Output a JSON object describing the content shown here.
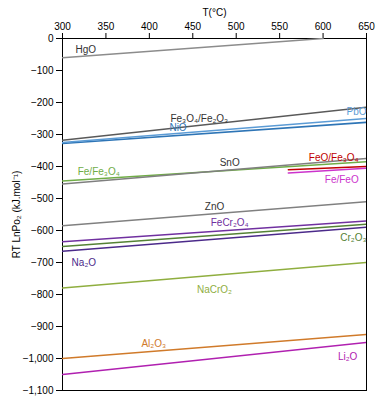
{
  "chart_data": {
    "type": "line",
    "x_label": "T(°C)",
    "y_label": "RT LnPo₂ (kJ.mol⁻¹)",
    "xlim": [
      300,
      650
    ],
    "xticks": [
      300,
      350,
      400,
      450,
      500,
      550,
      600,
      650
    ],
    "ylim": [
      -1100,
      0
    ],
    "yticks": [
      -1100,
      -1000,
      -900,
      -800,
      -700,
      -600,
      -500,
      -400,
      -300,
      -200,
      -100,
      0
    ],
    "grid": false,
    "series": [
      {
        "name": "HgO",
        "color": "#8c8c8c",
        "x": [
          300,
          600
        ],
        "values": [
          -60,
          0
        ]
      },
      {
        "name": "Fe₃O₄/Fe₂O₃",
        "color": "#595959",
        "x": [
          300,
          650
        ],
        "values": [
          -318,
          -215
        ]
      },
      {
        "name": "NiO",
        "color": "#2e75b6",
        "x": [
          300,
          650
        ],
        "values": [
          -328,
          -262
        ]
      },
      {
        "name": "PbO",
        "color": "#5b9bd5",
        "x": [
          300,
          650
        ],
        "values": [
          -325,
          -250
        ]
      },
      {
        "name": "Fe/Fe₃O₄",
        "color": "#70ad47",
        "x": [
          300,
          650
        ],
        "values": [
          -445,
          -385
        ]
      },
      {
        "name": "SnO",
        "color": "#7f7f7f",
        "x": [
          300,
          650
        ],
        "values": [
          -455,
          -375
        ]
      },
      {
        "name": "FeO/Fe₃O₄",
        "color": "#c00000",
        "x": [
          560,
          650
        ],
        "values": [
          -410,
          -400
        ]
      },
      {
        "name": "Fe/FeO",
        "color": "#cc33cc",
        "x": [
          560,
          650
        ],
        "values": [
          -420,
          -405
        ]
      },
      {
        "name": "ZnO",
        "color": "#808080",
        "x": [
          300,
          650
        ],
        "values": [
          -585,
          -510
        ]
      },
      {
        "name": "FeCr₂O₄",
        "color": "#7030a0",
        "x": [
          300,
          650
        ],
        "values": [
          -635,
          -570
        ]
      },
      {
        "name": "Cr₂O₃",
        "color": "#548235",
        "x": [
          300,
          650
        ],
        "values": [
          -650,
          -580
        ]
      },
      {
        "name": "Na₂O",
        "color": "#4b2a8a",
        "x": [
          300,
          650
        ],
        "values": [
          -665,
          -590
        ]
      },
      {
        "name": "NaCrO₂",
        "color": "#8fae3f",
        "x": [
          300,
          650
        ],
        "values": [
          -780,
          -700
        ]
      },
      {
        "name": "Al₂O₃",
        "color": "#d07a2a",
        "x": [
          300,
          650
        ],
        "values": [
          -1000,
          -925
        ]
      },
      {
        "name": "Li₂O",
        "color": "#b020b0",
        "x": [
          300,
          650
        ],
        "values": [
          -1050,
          -950
        ]
      }
    ]
  }
}
